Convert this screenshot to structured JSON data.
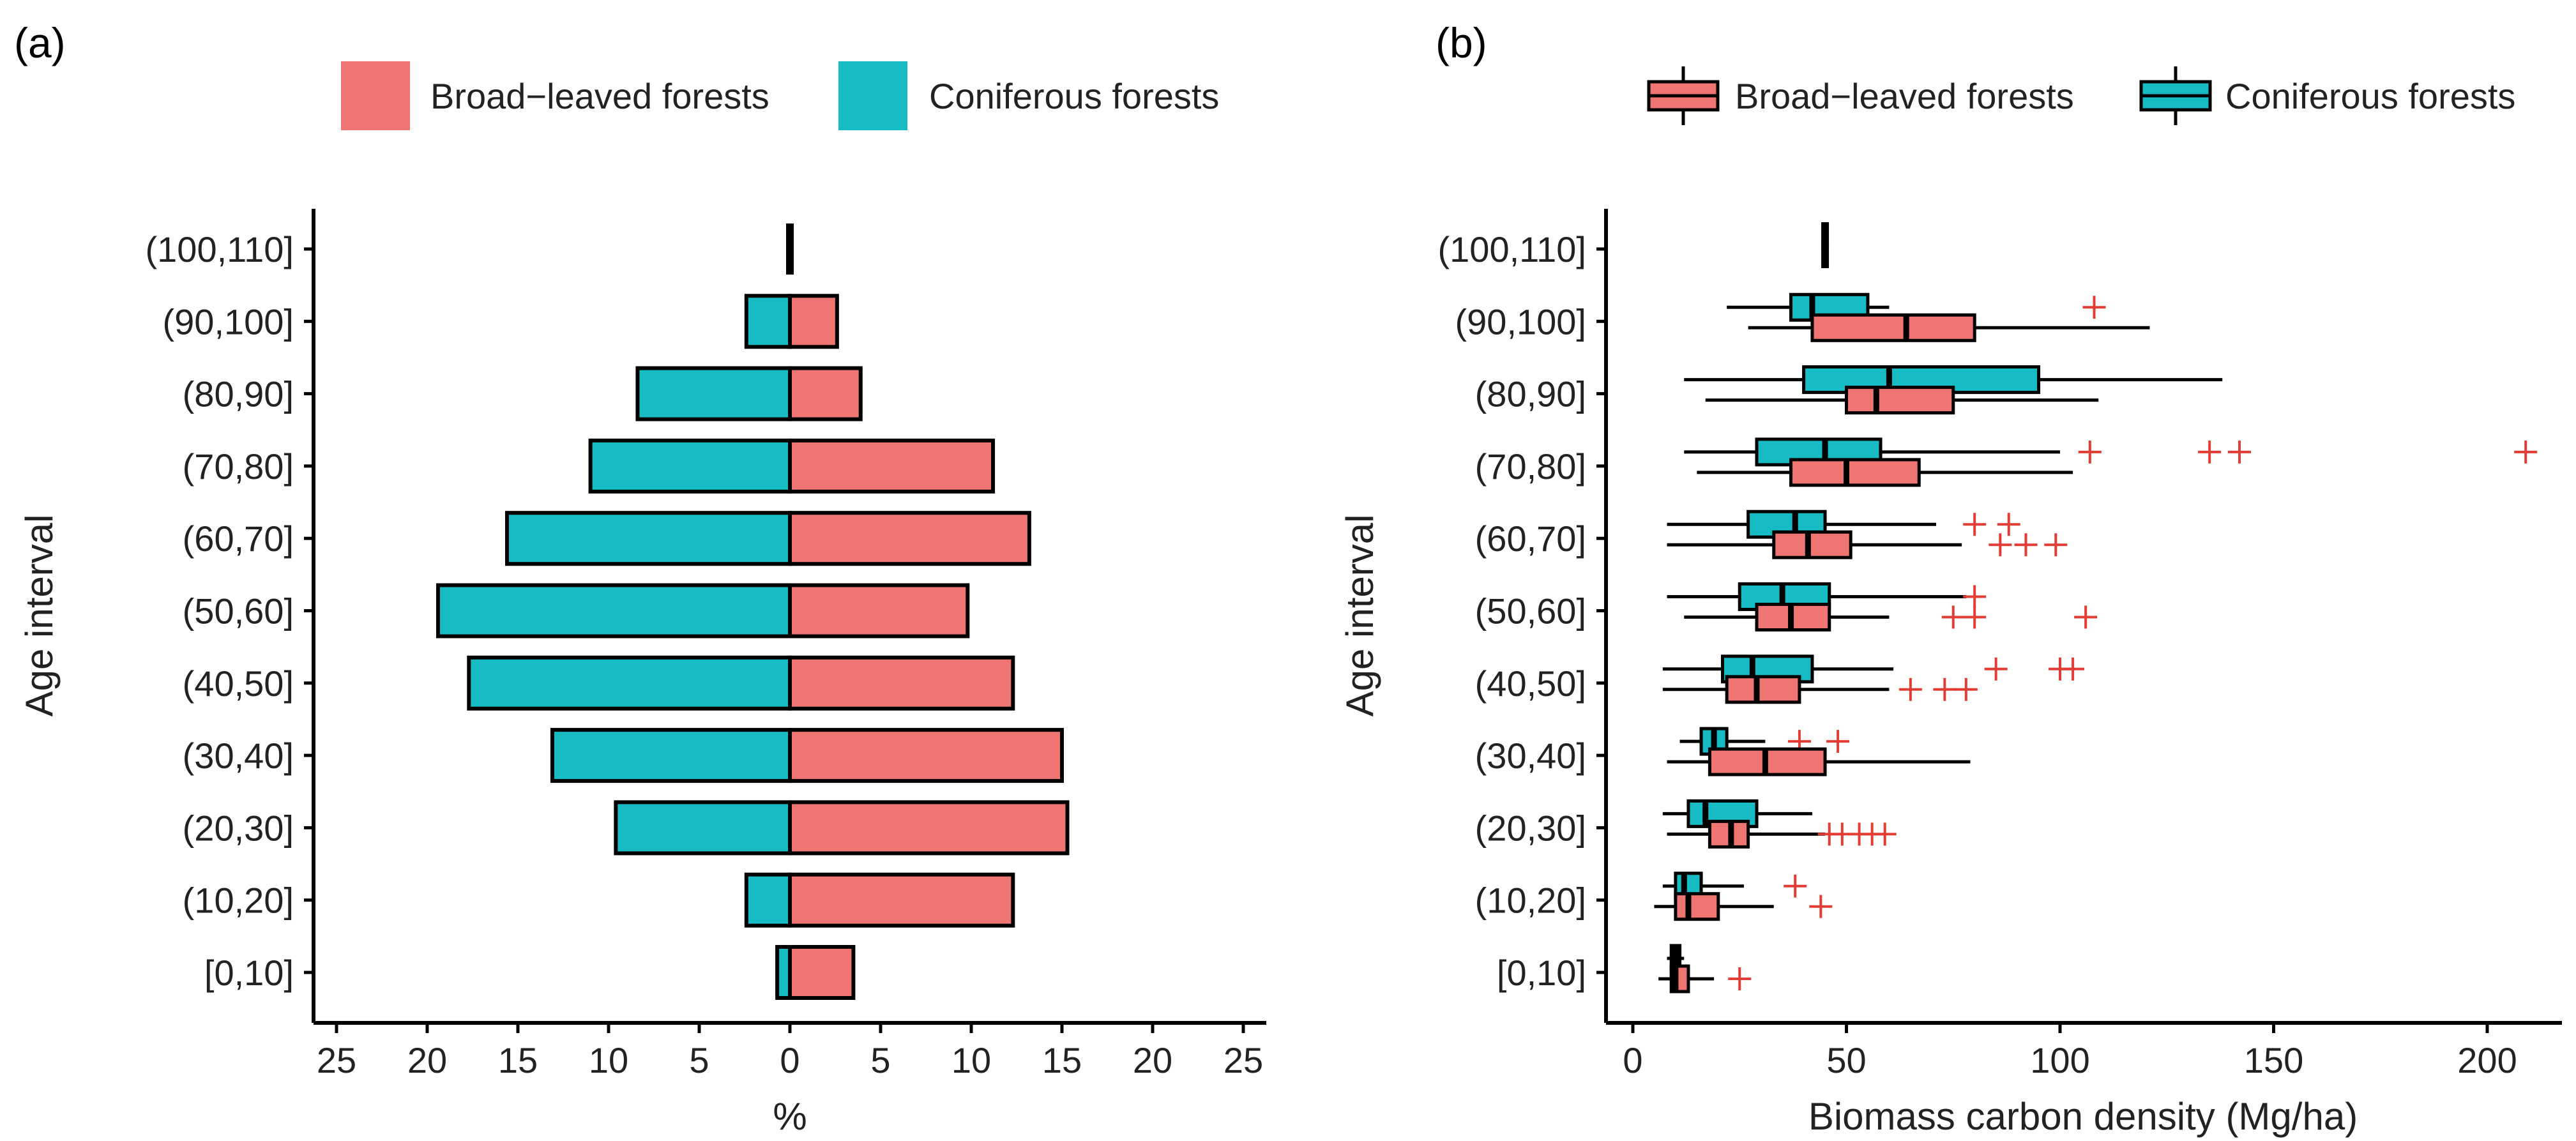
{
  "colors": {
    "broad": "#EE7571",
    "conif": "#17BBC3",
    "outlier": "#E23D34"
  },
  "chart_data": [
    {
      "type": "bar",
      "panel": "(a)",
      "orientation": "horizontal-diverging",
      "categories": [
        "[0,10]",
        "(10,20]",
        "(20,30]",
        "(30,40]",
        "(40,50]",
        "(50,60]",
        "(60,70]",
        "(70,80]",
        "(80,90]",
        "(90,100]",
        "(100,110]"
      ],
      "series": [
        {
          "name": "Broad−leaved forests",
          "values": [
            3.5,
            12.3,
            15.3,
            15.0,
            12.3,
            9.8,
            13.2,
            11.2,
            3.9,
            2.6,
            0.05
          ]
        },
        {
          "name": "Coniferous forests",
          "values": [
            0.7,
            2.4,
            9.6,
            13.1,
            17.7,
            19.4,
            15.6,
            11.0,
            8.4,
            2.4,
            0.05
          ]
        }
      ],
      "xlabel": "%",
      "ylabel": "Age interval",
      "xlim": [
        -26,
        26
      ],
      "xticks": [
        -25,
        -20,
        -15,
        -10,
        -5,
        0,
        5,
        10,
        15,
        20,
        25
      ],
      "xtick_labels": [
        "25",
        "20",
        "15",
        "10",
        "5",
        "0",
        "5",
        "10",
        "15",
        "20",
        "25"
      ],
      "legend": "top"
    },
    {
      "type": "box",
      "panel": "(b)",
      "orientation": "horizontal",
      "categories": [
        "[0,10]",
        "(10,20]",
        "(20,30]",
        "(30,40]",
        "(40,50]",
        "(50,60]",
        "(60,70]",
        "(70,80]",
        "(80,90]",
        "(90,100]",
        "(100,110]"
      ],
      "series": [
        {
          "name": "Broad−leaved forests",
          "boxes": [
            {
              "min": 6,
              "q1": 9,
              "median": 10,
              "q3": 13,
              "max": 19,
              "outliers": [
                25
              ]
            },
            {
              "min": 5,
              "q1": 10,
              "median": 13,
              "q3": 20,
              "max": 33,
              "outliers": [
                44
              ]
            },
            {
              "min": 8,
              "q1": 18,
              "median": 23,
              "q3": 27,
              "max": 45,
              "outliers": [
                46,
                49,
                53,
                56,
                59
              ]
            },
            {
              "min": 8,
              "q1": 18,
              "median": 31,
              "q3": 45,
              "max": 79,
              "outliers": []
            },
            {
              "min": 7,
              "q1": 22,
              "median": 29,
              "q3": 39,
              "max": 60,
              "outliers": [
                65,
                73,
                78
              ]
            },
            {
              "min": 12,
              "q1": 29,
              "median": 37,
              "q3": 46,
              "max": 60,
              "outliers": [
                75,
                80,
                106
              ]
            },
            {
              "min": 8,
              "q1": 33,
              "median": 41,
              "q3": 51,
              "max": 77,
              "outliers": [
                86,
                92,
                99
              ]
            },
            {
              "min": 15,
              "q1": 37,
              "median": 50,
              "q3": 67,
              "max": 103,
              "outliers": []
            },
            {
              "min": 17,
              "q1": 50,
              "median": 57,
              "q3": 75,
              "max": 109,
              "outliers": []
            },
            {
              "min": 27,
              "q1": 42,
              "median": 64,
              "q3": 80,
              "max": 121,
              "outliers": []
            },
            {
              "min": 45,
              "q1": 45,
              "median": 45,
              "q3": 45,
              "max": 45,
              "outliers": []
            }
          ]
        },
        {
          "name": "Coniferous forests",
          "boxes": [
            {
              "min": 8,
              "q1": 9,
              "median": 10,
              "q3": 11,
              "max": 12,
              "outliers": []
            },
            {
              "min": 7,
              "q1": 10,
              "median": 12,
              "q3": 16,
              "max": 26,
              "outliers": [
                38
              ]
            },
            {
              "min": 7,
              "q1": 13,
              "median": 17,
              "q3": 29,
              "max": 42,
              "outliers": []
            },
            {
              "min": 11,
              "q1": 16,
              "median": 19,
              "q3": 22,
              "max": 31,
              "outliers": [
                39,
                48
              ]
            },
            {
              "min": 7,
              "q1": 21,
              "median": 28,
              "q3": 42,
              "max": 61,
              "outliers": [
                85,
                100,
                103
              ]
            },
            {
              "min": 8,
              "q1": 25,
              "median": 35,
              "q3": 46,
              "max": 78,
              "outliers": [
                80
              ]
            },
            {
              "min": 8,
              "q1": 27,
              "median": 38,
              "q3": 45,
              "max": 71,
              "outliers": [
                80,
                88
              ]
            },
            {
              "min": 12,
              "q1": 29,
              "median": 45,
              "q3": 58,
              "max": 100,
              "outliers": [
                107,
                135,
                142,
                209
              ]
            },
            {
              "min": 12,
              "q1": 40,
              "median": 60,
              "q3": 95,
              "max": 138,
              "outliers": []
            },
            {
              "min": 22,
              "q1": 37,
              "median": 42,
              "q3": 55,
              "max": 60,
              "outliers": [
                108
              ]
            },
            {
              "min": 45,
              "q1": 45,
              "median": 45,
              "q3": 45,
              "max": 45,
              "outliers": []
            }
          ]
        }
      ],
      "xlabel": "Biomass carbon density (Mg/ha)",
      "ylabel": "Age interval",
      "xlim": [
        -8,
        222
      ],
      "xticks": [
        0,
        50,
        100,
        150,
        200
      ],
      "xtick_labels": [
        "0",
        "50",
        "100",
        "150",
        "200"
      ],
      "legend": "top"
    }
  ]
}
